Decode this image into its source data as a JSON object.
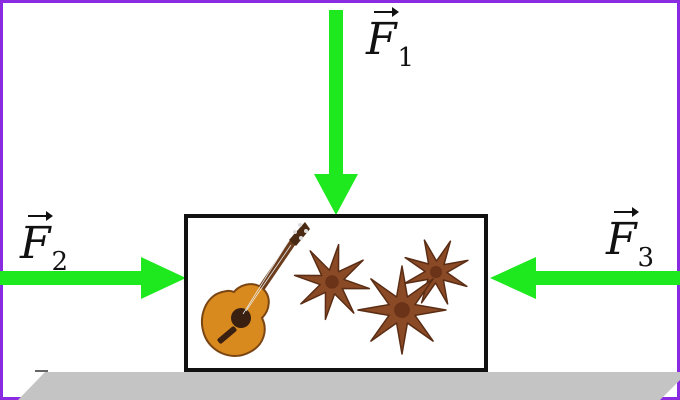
{
  "diagram": {
    "force_arrows": [
      {
        "id": "F1",
        "symbol": "F",
        "subscript": "1",
        "direction": "down"
      },
      {
        "id": "F2",
        "symbol": "F",
        "subscript": "2",
        "direction": "right"
      },
      {
        "id": "F3",
        "symbol": "F",
        "subscript": "3",
        "direction": "left"
      }
    ],
    "colors": {
      "arrow": "#1ee81e",
      "border": "#8a2be2",
      "box": "#111111",
      "ground": "#c4c4c4",
      "guitar_body": "#d88a1e",
      "star_anise": "#8b4a26"
    }
  }
}
